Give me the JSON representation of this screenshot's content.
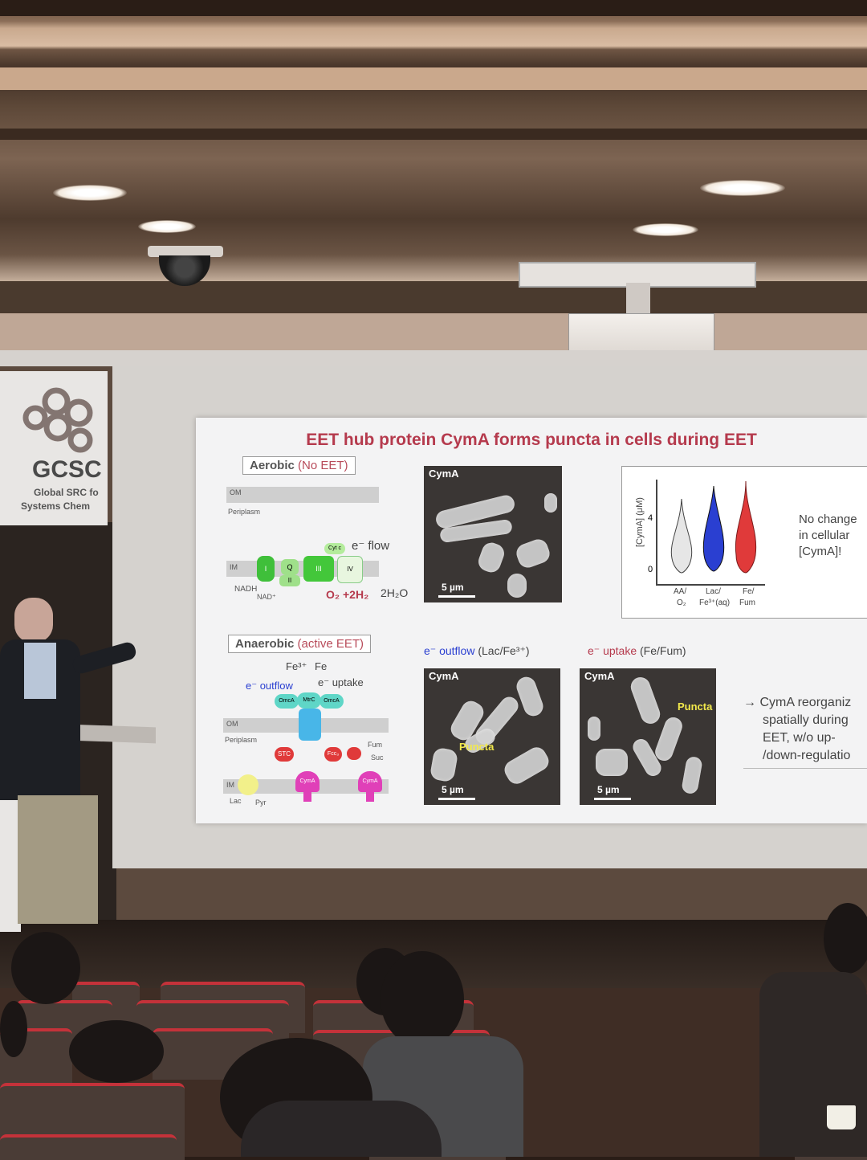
{
  "logo": {
    "name": "GCSC",
    "line1": "Global SRC fo",
    "line2": "Systems Chem"
  },
  "slide": {
    "title": "EET hub protein CymA forms puncta in cells during EET",
    "aerobic_label": "Aerobic",
    "aerobic_sub": "(No EET)",
    "anaerobic_label": "Anaerobic",
    "anaerobic_sub": "(active EET)",
    "om": "OM",
    "periplasm": "Periplasm",
    "im": "IM",
    "e_flow": "e⁻ flow",
    "nadh": "NADH",
    "nad": "NAD⁺",
    "o2_reaction": "O₂ +2H₂",
    "h2o": "2H₂O",
    "fe3": "Fe³⁺",
    "fe": "Fe",
    "e_outflow": "e⁻ outflow",
    "e_uptake": "e⁻ uptake",
    "mtrc": "MtrC",
    "omca": "OmcA",
    "stc": "STC",
    "fcc": "Fcc₃",
    "fum": "Fum",
    "suc": "Suc",
    "lac": "Lac",
    "pyr": "Pyr",
    "cyma": "CymA",
    "cytc": "Cyt c",
    "complex_1": "I",
    "complex_2": "II",
    "complex_3": "III",
    "complex_4": "IV",
    "complex_q": "Q",
    "micro_top_label": "CymA",
    "micro_scale": "5 µm",
    "outflow_header_prefix": "e⁻ outflow",
    "outflow_header_cond": "(Lac/Fe³⁺)",
    "uptake_header_prefix": "e⁻ uptake",
    "uptake_header_cond": "(Fe/Fum)",
    "puncta": "Puncta",
    "violin_ylabel": "[CymA] (μM)",
    "violin_tick_4": "4",
    "violin_tick_0": "0",
    "violin_cat_1a": "AA/",
    "violin_cat_1b": "O₂",
    "violin_cat_2a": "Lac/",
    "violin_cat_2b": "Fe³⁺(aq)",
    "violin_cat_3a": "Fe/",
    "violin_cat_3b": "Fum",
    "no_change_1": "No change",
    "no_change_2": "in cellular",
    "no_change_3": "[CymA]!",
    "conclusion_1": "→ CymA reorganiz",
    "conclusion_2": "spatially during",
    "conclusion_3": "EET, w/o up-",
    "conclusion_4": "/down-regulatio"
  },
  "colors": {
    "title": "#b53a4d",
    "green": "#4cc94a",
    "magenta": "#e040b8",
    "blue": "#2a3fd1",
    "red": "#e03a3a"
  }
}
